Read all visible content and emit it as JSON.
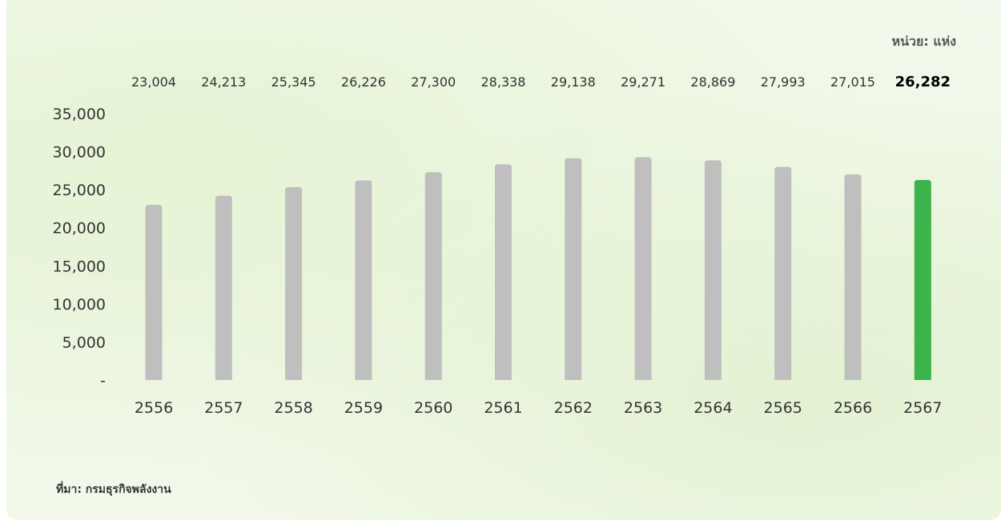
{
  "unit_label": "หน่วย: แห่ง",
  "source_label": "ที่มา: กรมธุรกิจพลังงาน",
  "colors": {
    "bar": "#bfbfbf",
    "highlight_bar": "#3cb44b",
    "text": "#333333"
  },
  "chart_data": {
    "type": "bar",
    "categories": [
      "2556",
      "2557",
      "2558",
      "2559",
      "2560",
      "2561",
      "2562",
      "2563",
      "2564",
      "2565",
      "2566",
      "2567"
    ],
    "values": [
      23004,
      24213,
      25345,
      26226,
      27300,
      28338,
      29138,
      29271,
      28869,
      27993,
      27015,
      26282
    ],
    "value_labels": [
      "23,004",
      "24,213",
      "25,345",
      "26,226",
      "27,300",
      "28,338",
      "29,138",
      "29,271",
      "28,869",
      "27,993",
      "27,015",
      "26,282"
    ],
    "highlight_index": 11,
    "ylim": [
      0,
      35000
    ],
    "yticks": [
      0,
      5000,
      10000,
      15000,
      20000,
      25000,
      30000,
      35000
    ],
    "ytick_labels": [
      "-",
      "5,000",
      "10,000",
      "15,000",
      "20,000",
      "25,000",
      "30,000",
      "35,000"
    ],
    "grid": false,
    "title": "",
    "xlabel": "",
    "ylabel": ""
  }
}
